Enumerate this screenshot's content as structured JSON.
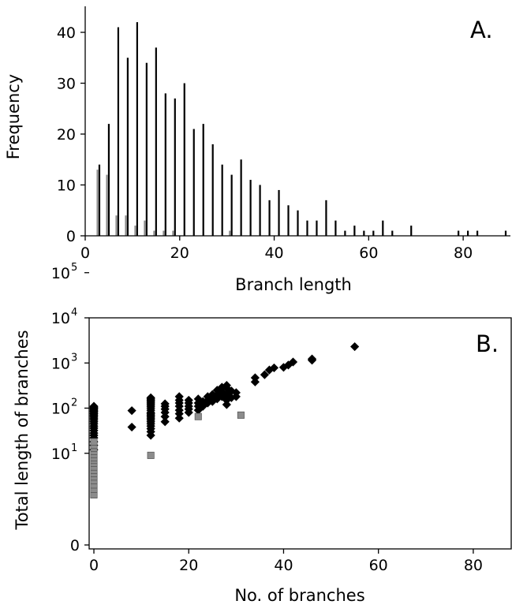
{
  "chart_data": [
    {
      "panel_label": "A.",
      "type": "bar",
      "xlabel": "Branch length",
      "ylabel": "Frequency",
      "xlim": [
        0,
        90
      ],
      "ylim": [
        0,
        45
      ],
      "xticks": [
        "0",
        "20",
        "40",
        "60",
        "80"
      ],
      "yticks": [
        "0",
        "10",
        "20",
        "30",
        "40"
      ],
      "colors": {
        "black": "#000000",
        "gray": "#8c8c8c"
      },
      "series": [
        {
          "color": "black",
          "x": [
            3,
            5,
            7,
            9,
            11,
            13,
            15,
            17,
            19,
            21,
            23,
            25,
            27,
            29,
            31,
            33,
            35,
            37,
            39,
            41,
            43,
            45,
            47,
            49,
            51,
            53,
            55,
            57,
            59,
            61,
            63,
            65,
            67,
            69,
            71,
            73,
            75,
            77,
            79,
            81,
            83,
            85,
            87,
            89
          ],
          "values": [
            14,
            22,
            41,
            35,
            42,
            34,
            37,
            28,
            27,
            30,
            21,
            22,
            18,
            14,
            12,
            15,
            11,
            10,
            7,
            9,
            6,
            5,
            3,
            3,
            7,
            3,
            1,
            2,
            1,
            1,
            3,
            1,
            0,
            2,
            0,
            0,
            0,
            0,
            1,
            1,
            1,
            0,
            0,
            1
          ]
        },
        {
          "color": "gray",
          "x": [
            3,
            5,
            7,
            9,
            11,
            13,
            15,
            17,
            19,
            21,
            23,
            25,
            27,
            29,
            31
          ],
          "values": [
            13,
            12,
            4,
            4,
            2,
            3,
            1,
            1,
            1,
            0,
            0,
            0,
            0,
            0,
            1
          ]
        }
      ]
    },
    {
      "panel_label": "B.",
      "type": "scatter",
      "xlabel": "No. of branches",
      "ylabel": "Total length of branches",
      "xlim": [
        -1,
        88
      ],
      "y_scale": "log",
      "y_axis_note": "bottom tick labelled 0",
      "xticks": [
        "0",
        "20",
        "40",
        "60",
        "80"
      ],
      "yticks": [
        "0",
        "10",
        "10",
        "10",
        "10",
        "10"
      ],
      "ytick_exponents": [
        "",
        "1",
        "2",
        "3",
        "4",
        "5"
      ],
      "colors": {
        "black": "#000000",
        "gray": "#8c8c8c"
      },
      "series": [
        {
          "marker": "diamond",
          "color": "black",
          "points": [
            [
              0,
              12
            ],
            [
              0,
              15
            ],
            [
              0,
              18
            ],
            [
              0,
              22
            ],
            [
              0,
              25
            ],
            [
              0,
              28
            ],
            [
              0,
              32
            ],
            [
              0,
              36
            ],
            [
              0,
              40
            ],
            [
              0,
              45
            ],
            [
              0,
              50
            ],
            [
              0,
              55
            ],
            [
              0,
              60
            ],
            [
              0,
              65
            ],
            [
              0,
              70
            ],
            [
              0,
              75
            ],
            [
              0,
              80
            ],
            [
              0,
              85
            ],
            [
              0,
              90
            ],
            [
              0,
              95
            ],
            [
              0,
              100
            ],
            [
              0,
              105
            ],
            [
              0,
              110
            ],
            [
              8,
              38
            ],
            [
              8,
              88
            ],
            [
              12,
              25
            ],
            [
              12,
              30
            ],
            [
              12,
              35
            ],
            [
              12,
              40
            ],
            [
              12,
              45
            ],
            [
              12,
              50
            ],
            [
              12,
              55
            ],
            [
              12,
              60
            ],
            [
              12,
              65
            ],
            [
              12,
              70
            ],
            [
              12,
              75
            ],
            [
              12,
              80
            ],
            [
              12,
              90
            ],
            [
              12,
              100
            ],
            [
              12,
              110
            ],
            [
              12,
              120
            ],
            [
              12,
              130
            ],
            [
              12,
              140
            ],
            [
              12,
              150
            ],
            [
              12,
              160
            ],
            [
              12,
              170
            ],
            [
              15,
              50
            ],
            [
              15,
              65
            ],
            [
              15,
              80
            ],
            [
              15,
              95
            ],
            [
              15,
              110
            ],
            [
              15,
              125
            ],
            [
              18,
              60
            ],
            [
              18,
              75
            ],
            [
              18,
              90
            ],
            [
              18,
              110
            ],
            [
              18,
              130
            ],
            [
              18,
              150
            ],
            [
              18,
              180
            ],
            [
              20,
              80
            ],
            [
              20,
              95
            ],
            [
              20,
              110
            ],
            [
              20,
              130
            ],
            [
              20,
              150
            ],
            [
              22,
              90
            ],
            [
              22,
              110
            ],
            [
              22,
              130
            ],
            [
              22,
              160
            ],
            [
              23,
              110
            ],
            [
              23,
              140
            ],
            [
              24,
              130
            ],
            [
              24,
              150
            ],
            [
              24,
              180
            ],
            [
              25,
              140
            ],
            [
              25,
              170
            ],
            [
              25,
              200
            ],
            [
              26,
              160
            ],
            [
              26,
              200
            ],
            [
              26,
              250
            ],
            [
              27,
              180
            ],
            [
              27,
              230
            ],
            [
              27,
              290
            ],
            [
              28,
              120
            ],
            [
              28,
              150
            ],
            [
              28,
              200
            ],
            [
              28,
              280
            ],
            [
              28,
              320
            ],
            [
              29,
              170
            ],
            [
              29,
              240
            ],
            [
              30,
              180
            ],
            [
              30,
              220
            ],
            [
              34,
              380
            ],
            [
              34,
              470
            ],
            [
              36,
              550
            ],
            [
              37,
              700
            ],
            [
              38,
              780
            ],
            [
              40,
              800
            ],
            [
              41,
              900
            ],
            [
              42,
              1050
            ],
            [
              46,
              1150
            ],
            [
              46,
              1230
            ],
            [
              55,
              2300
            ]
          ]
        },
        {
          "marker": "square",
          "color": "gray",
          "points": [
            [
              0,
              1.2
            ],
            [
              0,
              1.6
            ],
            [
              0,
              2
            ],
            [
              0,
              2.5
            ],
            [
              0,
              3
            ],
            [
              0,
              3.6
            ],
            [
              0,
              4.2
            ],
            [
              0,
              5
            ],
            [
              0,
              6
            ],
            [
              0,
              7
            ],
            [
              0,
              8
            ],
            [
              0,
              9.5
            ],
            [
              0,
              11
            ],
            [
              0,
              13
            ],
            [
              0,
              15
            ],
            [
              0,
              18
            ],
            [
              12,
              9
            ],
            [
              22,
              65
            ],
            [
              31,
              70
            ]
          ]
        }
      ]
    }
  ]
}
